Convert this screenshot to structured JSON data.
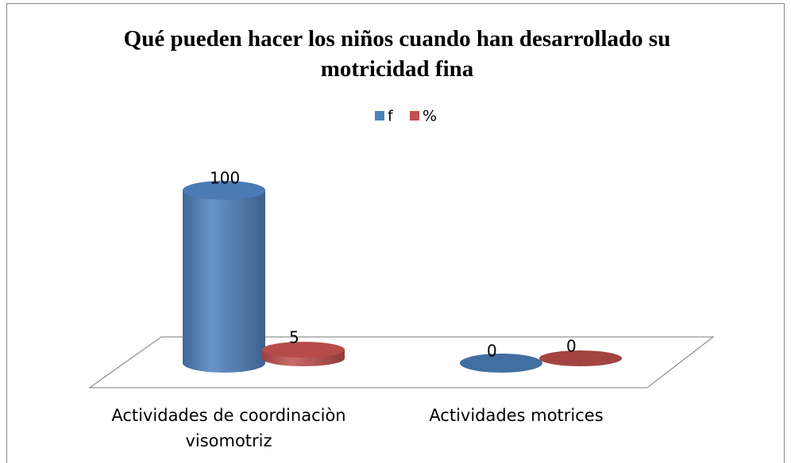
{
  "chart_data": {
    "type": "bar3d",
    "title": "Qué pueden hacer los niños cuando han desarrollado su motricidad fina",
    "categories": [
      "Actividades de coordinaciòn visomotriz",
      "Actividades motrices"
    ],
    "series": [
      {
        "name": "f",
        "color": "#4f81bd",
        "values": [
          100,
          0
        ]
      },
      {
        "name": "%",
        "color": "#c0504d",
        "values": [
          5,
          0
        ]
      }
    ],
    "legend": "top"
  }
}
